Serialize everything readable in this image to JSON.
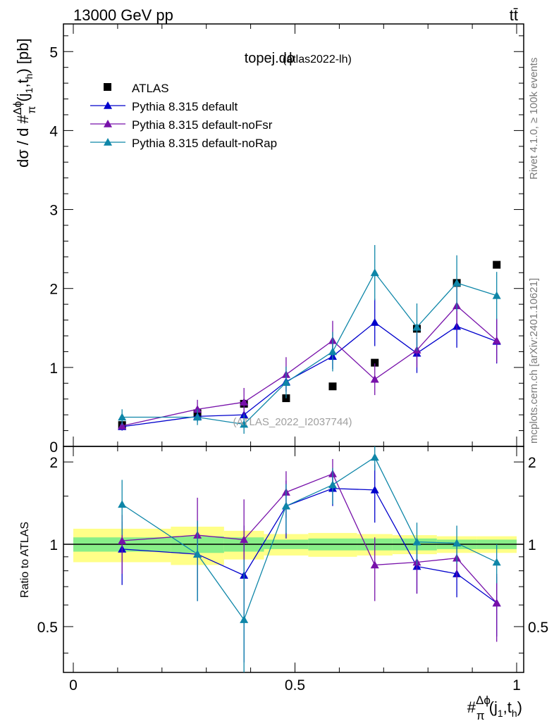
{
  "header": {
    "energy_label": "13000 GeV pp",
    "process_label": "tt̄",
    "plot_title": "topej.dϕ",
    "plot_subtitle": "(atlas2022-lh)",
    "watermark": "(ATLAS_2022_I2037744)",
    "side_right_top": "Rivet 4.1.0, ≥ 100k events",
    "side_right_bottom": "mcplots.cern.ch [arXiv:2401.10621]"
  },
  "axes": {
    "top_ylabel": "dσ / d #Δϕπ(j1,th) [pb]",
    "bottom_ylabel": "Ratio to ATLAS",
    "xlabel": "#Δϕπ(j1,th)",
    "top_ylim": [
      0,
      5.35
    ],
    "ratio_ylim": [
      0.34,
      2.28
    ],
    "xlim": [
      0,
      1
    ],
    "top_yticks": [
      "0",
      "1",
      "2",
      "3",
      "4",
      "5"
    ],
    "ratio_yticks": [
      "0.5",
      "1",
      "2"
    ],
    "xticks": [
      "0",
      "0.5",
      "1"
    ]
  },
  "chart_data": {
    "type": "scatter",
    "title": "topej.dϕ (atlas2022-lh)",
    "x": [
      0.11,
      0.28,
      0.385,
      0.48,
      0.585,
      0.68,
      0.775,
      0.865,
      0.955
    ],
    "bin_edges": [
      0,
      0.22,
      0.34,
      0.43,
      0.53,
      0.64,
      0.72,
      0.82,
      0.91,
      1.0
    ],
    "legend": [
      "ATLAS",
      "Pythia 8.315 default",
      "Pythia 8.315 default-noFsr",
      "Pythia 8.315 default-noRap"
    ],
    "series": [
      {
        "name": "ATLAS",
        "marker": "square",
        "color": "#000000",
        "values": [
          0.27,
          0.42,
          0.54,
          0.61,
          0.76,
          1.06,
          1.49,
          2.07,
          2.3
        ],
        "ratio": [
          1,
          1,
          1,
          1,
          1,
          1,
          1,
          1,
          1
        ],
        "band_green": [
          0.06,
          0.07,
          0.06,
          0.04,
          0.05,
          0.05,
          0.05,
          0.04,
          0.04
        ],
        "band_yellow": [
          0.14,
          0.16,
          0.12,
          0.09,
          0.1,
          0.09,
          0.08,
          0.07,
          0.07
        ]
      },
      {
        "name": "Pythia 8.315 default",
        "marker": "triangle",
        "color": "#0000cc",
        "values": [
          0.25,
          0.38,
          0.4,
          0.82,
          1.14,
          1.57,
          1.18,
          1.52,
          1.33
        ],
        "errors": [
          0.05,
          0.07,
          0.09,
          0.12,
          0.16,
          0.3,
          0.25,
          0.27,
          0.28
        ],
        "ratio": [
          0.96,
          0.92,
          0.77,
          1.38,
          1.6,
          1.58,
          0.83,
          0.78,
          0.61
        ],
        "ratio_errors": [
          0.25,
          0.3,
          0.4,
          0.33,
          0.22,
          0.38,
          0.17,
          0.14,
          0.15
        ]
      },
      {
        "name": "Pythia 8.315 default-noFsr",
        "marker": "triangle",
        "color": "#7711aa",
        "values": [
          0.26,
          0.47,
          0.56,
          0.91,
          1.34,
          0.85,
          1.22,
          1.78,
          1.34
        ],
        "errors": [
          0.05,
          0.12,
          0.18,
          0.22,
          0.25,
          0.2,
          0.22,
          0.3,
          0.28
        ],
        "ratio": [
          1.03,
          1.08,
          1.04,
          1.55,
          1.81,
          0.84,
          0.86,
          0.89,
          0.61
        ],
        "ratio_errors": [
          0.25,
          0.4,
          0.42,
          0.3,
          0.24,
          0.22,
          0.2,
          0.14,
          0.17
        ]
      },
      {
        "name": "Pythia 8.315 default-noRap",
        "marker": "triangle",
        "color": "#0e86a8",
        "values": [
          0.37,
          0.37,
          0.28,
          0.81,
          1.2,
          2.2,
          1.51,
          2.07,
          1.91
        ],
        "errors": [
          0.1,
          0.1,
          0.12,
          0.2,
          0.25,
          0.35,
          0.3,
          0.35,
          0.3
        ],
        "ratio": [
          1.4,
          0.92,
          0.53,
          1.38,
          1.65,
          2.08,
          1.02,
          1.01,
          0.86
        ],
        "ratio_errors": [
          0.32,
          0.3,
          0.35,
          0.28,
          0.25,
          0.22,
          0.18,
          0.16,
          0.14
        ]
      }
    ]
  }
}
